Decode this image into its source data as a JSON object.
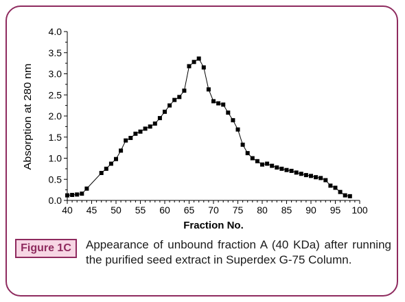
{
  "chart_data": {
    "type": "scatter",
    "title": "",
    "xlabel": "Fraction No.",
    "ylabel": "Absorption at 280 nm",
    "xlim": [
      40,
      100
    ],
    "ylim": [
      0.0,
      4.0
    ],
    "xticks": [
      40,
      45,
      50,
      55,
      60,
      65,
      70,
      75,
      80,
      85,
      90,
      95,
      100
    ],
    "yticks": [
      "0.0",
      "0.5",
      "1.0",
      "1.5",
      "2.0",
      "2.5",
      "3.0",
      "3.5",
      "4.0"
    ],
    "grid": false,
    "legend": "none",
    "series": [
      {
        "marker": "square",
        "line": true,
        "x": [
          40,
          41,
          42,
          43,
          44,
          47,
          48,
          49,
          50,
          51,
          52,
          53,
          54,
          55,
          56,
          57,
          58,
          59,
          60,
          61,
          62,
          63,
          64,
          65,
          66,
          67,
          68,
          69,
          70,
          71,
          72,
          73,
          74,
          75,
          76,
          77,
          78,
          79,
          80,
          81,
          82,
          83,
          84,
          85,
          86,
          87,
          88,
          89,
          90,
          91,
          92,
          93,
          94,
          95,
          96,
          97,
          98
        ],
        "y": [
          0.12,
          0.13,
          0.14,
          0.16,
          0.28,
          0.65,
          0.75,
          0.87,
          0.98,
          1.18,
          1.42,
          1.48,
          1.58,
          1.63,
          1.7,
          1.75,
          1.82,
          1.95,
          2.1,
          2.25,
          2.38,
          2.45,
          2.6,
          3.18,
          3.28,
          3.36,
          3.15,
          2.63,
          2.35,
          2.3,
          2.27,
          2.08,
          1.9,
          1.68,
          1.32,
          1.12,
          1.0,
          0.93,
          0.85,
          0.87,
          0.82,
          0.78,
          0.75,
          0.72,
          0.7,
          0.66,
          0.63,
          0.6,
          0.58,
          0.55,
          0.53,
          0.48,
          0.35,
          0.3,
          0.2,
          0.12,
          0.1
        ]
      }
    ]
  },
  "caption": {
    "label": "Figure 1C",
    "text": "Appearance of unbound fraction A (40 KDa) after running the purified seed extract in Superdex G-75 Column."
  }
}
